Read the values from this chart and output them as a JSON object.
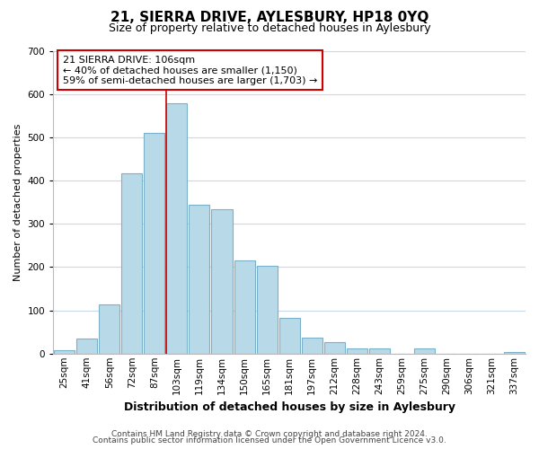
{
  "title": "21, SIERRA DRIVE, AYLESBURY, HP18 0YQ",
  "subtitle": "Size of property relative to detached houses in Aylesbury",
  "xlabel": "Distribution of detached houses by size in Aylesbury",
  "ylabel": "Number of detached properties",
  "bar_labels": [
    "25sqm",
    "41sqm",
    "56sqm",
    "72sqm",
    "87sqm",
    "103sqm",
    "119sqm",
    "134sqm",
    "150sqm",
    "165sqm",
    "181sqm",
    "197sqm",
    "212sqm",
    "228sqm",
    "243sqm",
    "259sqm",
    "275sqm",
    "290sqm",
    "306sqm",
    "321sqm",
    "337sqm"
  ],
  "bar_heights": [
    8,
    35,
    113,
    416,
    510,
    578,
    345,
    333,
    215,
    202,
    83,
    37,
    26,
    13,
    13,
    0,
    13,
    0,
    0,
    0,
    3
  ],
  "bar_color": "#b8d9e8",
  "bar_edge_color": "#7ab0c8",
  "property_line_color": "#cc0000",
  "annotation_title": "21 SIERRA DRIVE: 106sqm",
  "annotation_line1": "← 40% of detached houses are smaller (1,150)",
  "annotation_line2": "59% of semi-detached houses are larger (1,703) →",
  "annotation_box_facecolor": "#ffffff",
  "annotation_box_edgecolor": "#cc0000",
  "ylim": [
    0,
    700
  ],
  "yticks": [
    0,
    100,
    200,
    300,
    400,
    500,
    600,
    700
  ],
  "footer1": "Contains HM Land Registry data © Crown copyright and database right 2024.",
  "footer2": "Contains public sector information licensed under the Open Government Licence v3.0.",
  "bg_color": "#ffffff",
  "grid_color": "#c8d8e8",
  "title_fontsize": 11,
  "subtitle_fontsize": 9,
  "xlabel_fontsize": 9,
  "ylabel_fontsize": 8,
  "tick_fontsize": 7.5,
  "annotation_fontsize": 8,
  "footer_fontsize": 6.5
}
